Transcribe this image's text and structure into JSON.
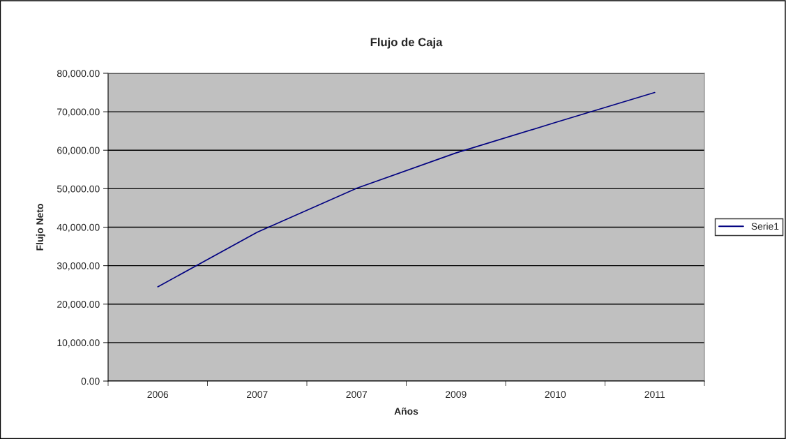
{
  "chart_data": {
    "type": "line",
    "title": "Flujo de Caja",
    "xlabel": "Años",
    "ylabel": "Flujo Neto",
    "categories": [
      "2006",
      "2007",
      "2007",
      "2009",
      "2010",
      "2011"
    ],
    "series": [
      {
        "name": "Serie1",
        "color": "#000080",
        "values": [
          24500,
          38700,
          50100,
          59300,
          67200,
          75000
        ]
      }
    ],
    "ylim": [
      0,
      80000
    ],
    "yticks": [
      {
        "value": 0,
        "label": "0.00"
      },
      {
        "value": 10000,
        "label": "10,000.00"
      },
      {
        "value": 20000,
        "label": "20,000.00"
      },
      {
        "value": 30000,
        "label": "30,000.00"
      },
      {
        "value": 40000,
        "label": "40,000.00"
      },
      {
        "value": 50000,
        "label": "50,000.00"
      },
      {
        "value": 60000,
        "label": "60,000.00"
      },
      {
        "value": 70000,
        "label": "70,000.00"
      },
      {
        "value": 80000,
        "label": "80,000.00"
      }
    ],
    "grid": "y",
    "legend": "right",
    "marker": "none",
    "line_style": "solid"
  }
}
